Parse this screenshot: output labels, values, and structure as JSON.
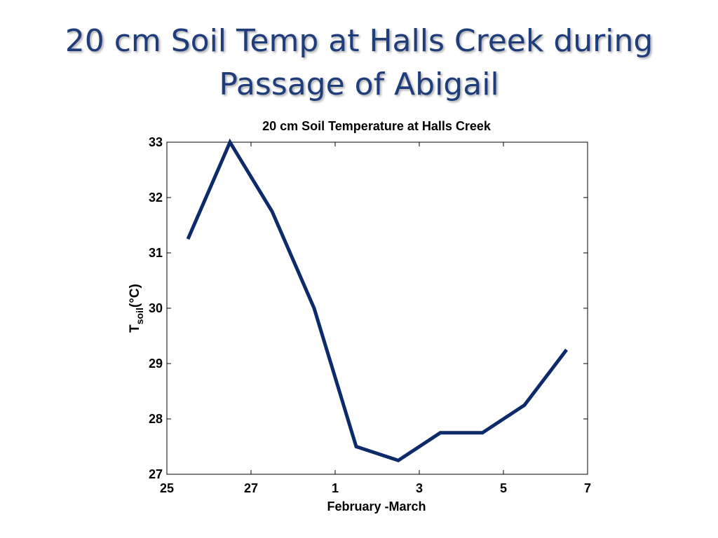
{
  "slide": {
    "title_line1": "20 cm Soil Temp at Halls Creek during",
    "title_line2": "Passage of Abigail"
  },
  "chart_data": {
    "type": "line",
    "title": "20 cm Soil Temperature at Halls Creek",
    "xlabel": "February -March",
    "ylabel": "T",
    "ylabel_subscript": "soil",
    "ylabel_suffix": "(°C)",
    "xlim": [
      25,
      7
    ],
    "x_tick_labels": [
      "25",
      "27",
      "1",
      "3",
      "5",
      "7"
    ],
    "x_tick_days": [
      0,
      2,
      4,
      6,
      8,
      10
    ],
    "ylim": [
      27,
      33
    ],
    "y_ticks": [
      27,
      28,
      29,
      30,
      31,
      32,
      33
    ],
    "grid": false,
    "line_color": "#0d2a6b",
    "series": [
      {
        "name": "",
        "x": [
          "Feb 25.5",
          "Feb 26.5",
          "Feb 27.5",
          "Feb 28.5",
          "Mar 1.5",
          "Mar 2.5",
          "Mar 3.5",
          "Mar 4.5",
          "Mar 5.5",
          "Mar 6.5"
        ],
        "x_days": [
          0.5,
          1.5,
          2.5,
          3.5,
          4.5,
          5.5,
          6.5,
          7.5,
          8.5,
          9.5
        ],
        "values": [
          31.25,
          33.0,
          31.75,
          30.0,
          27.5,
          27.25,
          27.75,
          27.75,
          28.25,
          29.25
        ]
      }
    ]
  }
}
